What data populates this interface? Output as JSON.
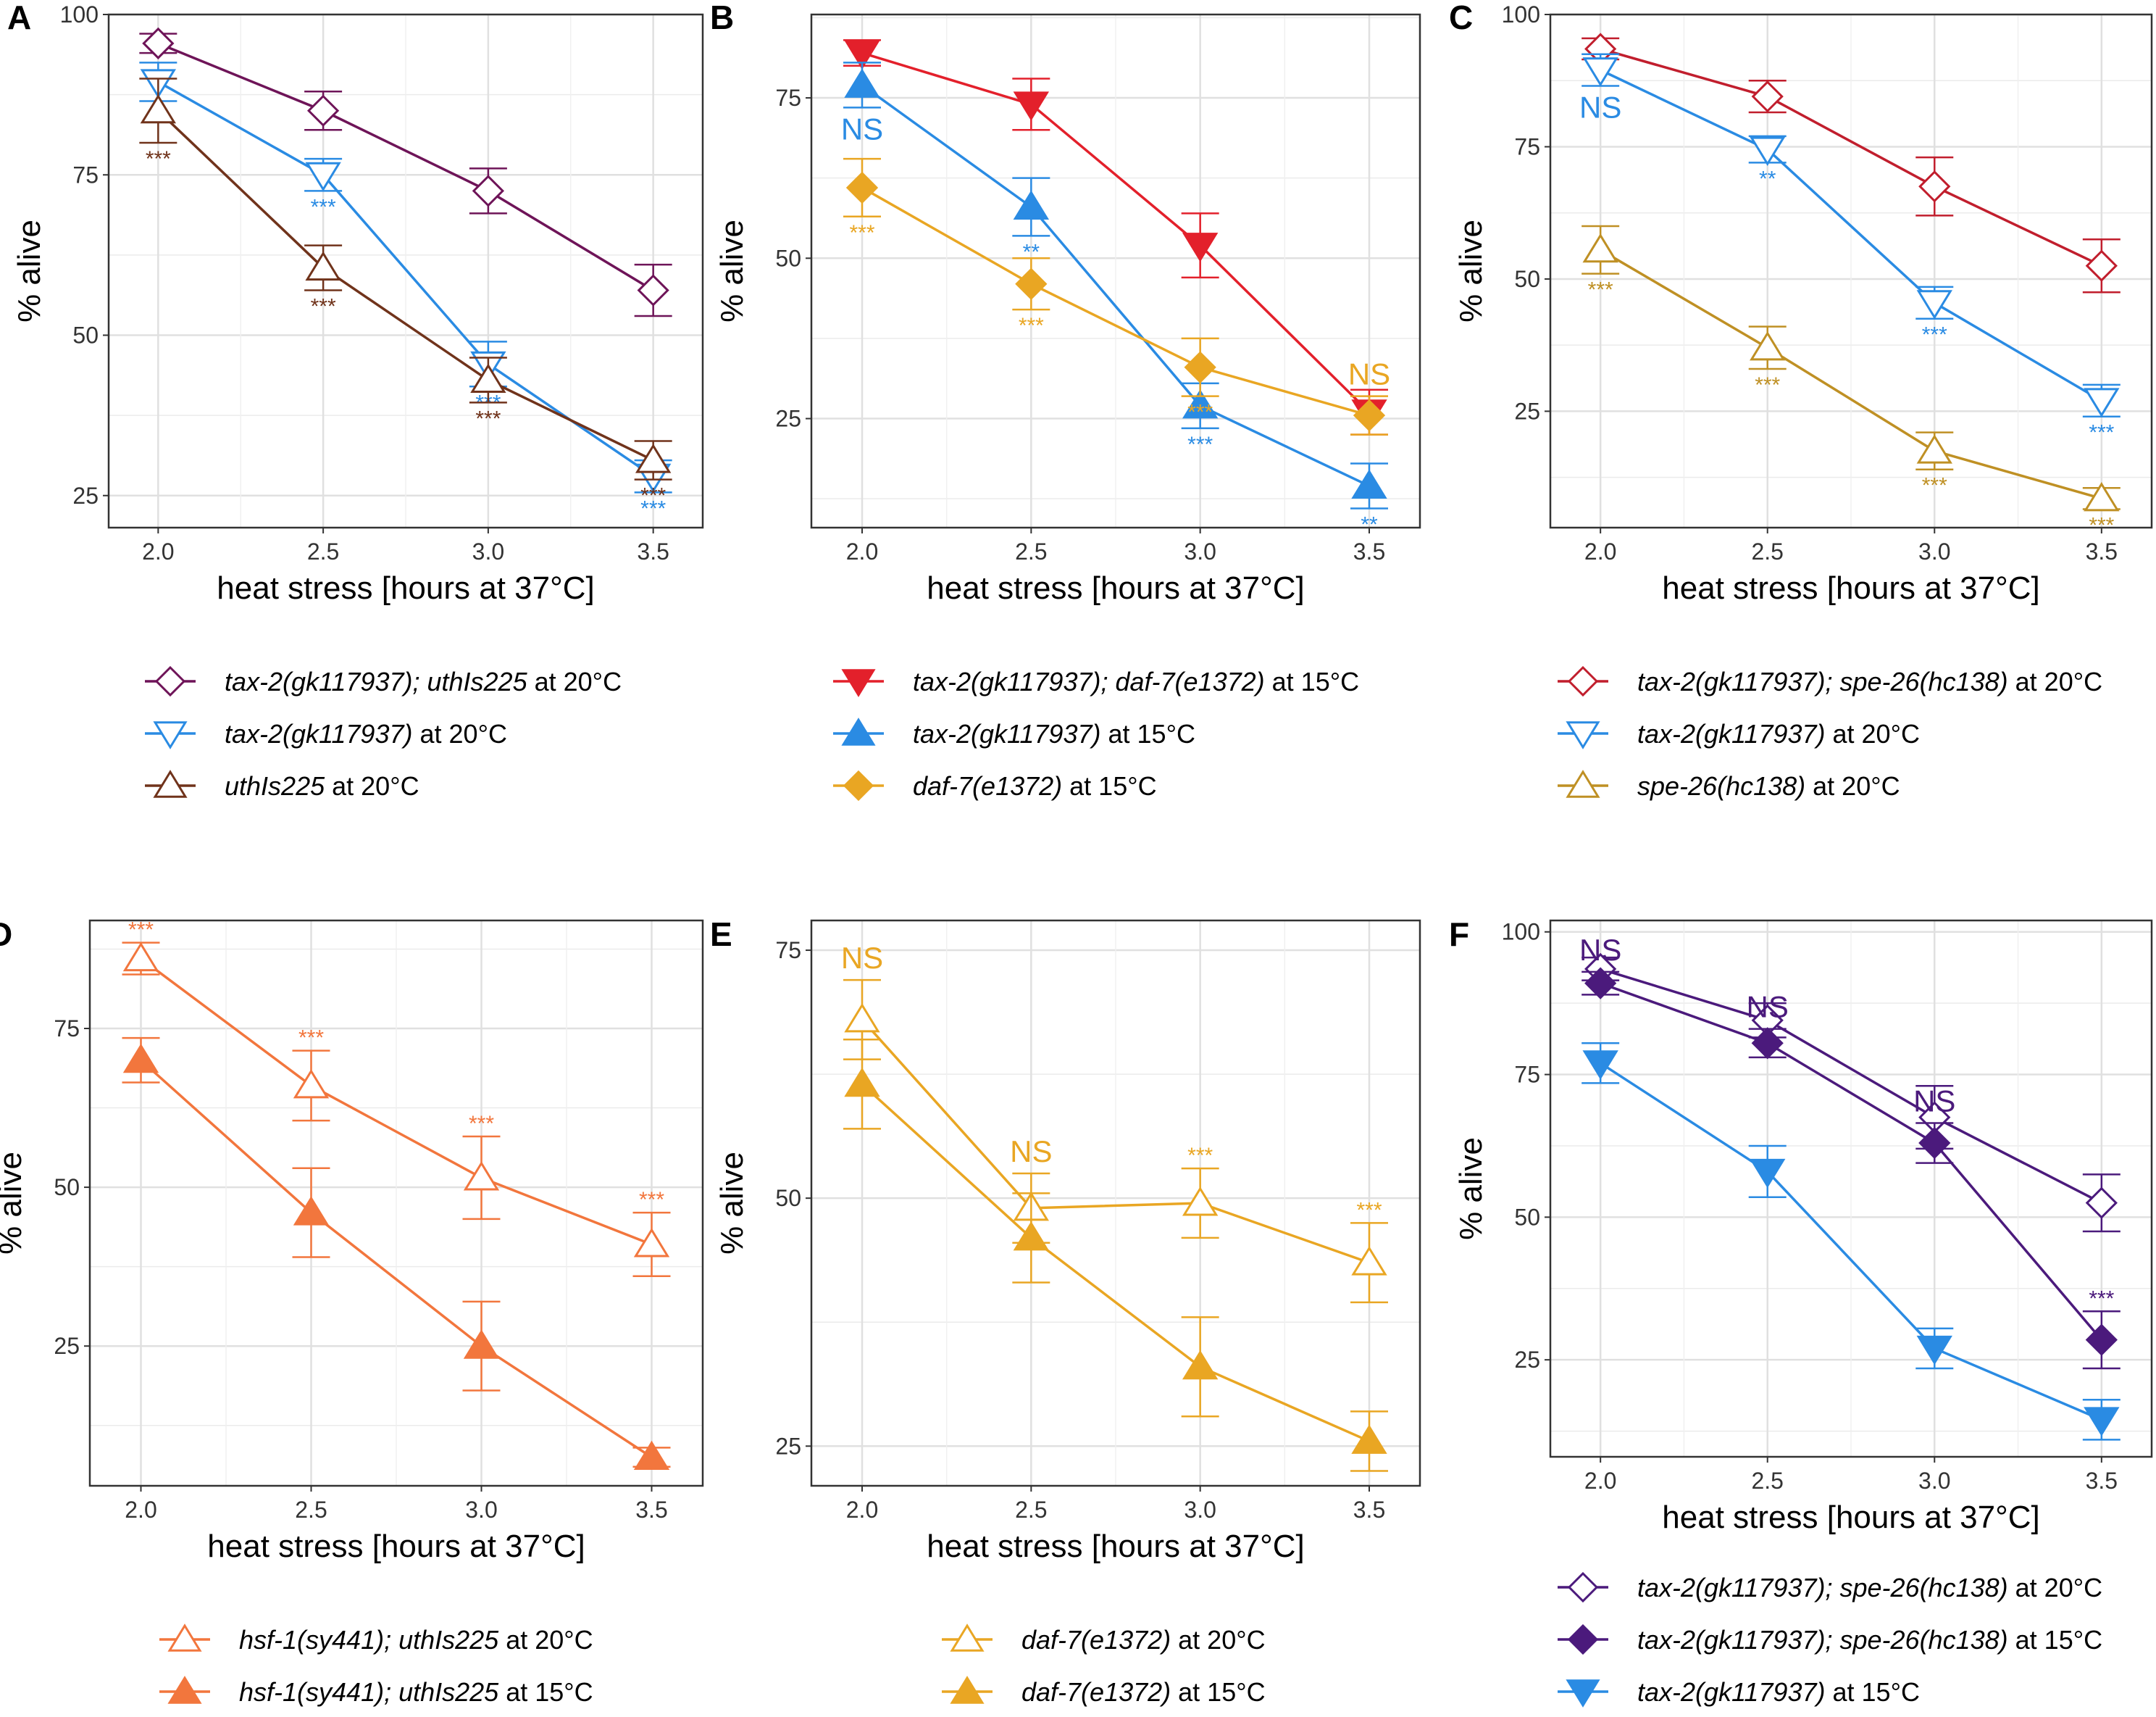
{
  "chart_data": [
    {
      "panel": "A",
      "type": "line",
      "xlabel": "heat stress [hours at 37°C]",
      "ylabel": "% alive",
      "x": [
        2.0,
        2.5,
        3.0,
        3.5
      ],
      "x_ticks": [
        "2.0",
        "2.5",
        "3.0",
        "3.5"
      ],
      "ylim": [
        20,
        100
      ],
      "y_ticks": [
        25,
        50,
        75,
        100
      ],
      "series": [
        {
          "name_italic": "tax-2(gk117937); uthIs225",
          "name_suffix": " at 20°C",
          "color": "#6e1458",
          "marker": "diamond",
          "filled": false,
          "values": [
            95.5,
            85,
            72.5,
            57
          ],
          "errors": [
            1.5,
            3,
            3.5,
            4
          ],
          "signif": [
            "",
            "",
            "",
            ""
          ]
        },
        {
          "name_italic": "tax-2(gk117937)",
          "name_suffix": " at 20°C",
          "color": "#2a8be3",
          "marker": "triangle-down",
          "filled": false,
          "values": [
            89.5,
            75,
            45.5,
            28
          ],
          "errors": [
            3,
            2.5,
            3.5,
            2.5
          ],
          "signif": [
            "**",
            "***",
            "***",
            "***"
          ]
        },
        {
          "name_italic": "uthIs225",
          "name_suffix": " at 20°C",
          "color": "#70331b",
          "marker": "triangle-up",
          "filled": false,
          "values": [
            85,
            60.5,
            43,
            30.5
          ],
          "errors": [
            5,
            3.5,
            3.5,
            3
          ],
          "signif": [
            "***",
            "***",
            "***",
            "***"
          ]
        }
      ]
    },
    {
      "panel": "B",
      "type": "line",
      "xlabel": "heat stress [hours at 37°C]",
      "ylabel": "% alive",
      "x": [
        2.0,
        2.5,
        3.0,
        3.5
      ],
      "x_ticks": [
        "2.0",
        "2.5",
        "3.0",
        "3.5"
      ],
      "ylim": [
        8,
        88
      ],
      "y_ticks": [
        25,
        50,
        75
      ],
      "series": [
        {
          "name_italic": "tax-2(gk117937); daf-7(e1372)",
          "name_suffix": " at 15°C",
          "color": "#e3202b",
          "marker": "triangle-down",
          "filled": true,
          "values": [
            82,
            74,
            52,
            26
          ],
          "errors": [
            2,
            4,
            5,
            3.5
          ],
          "signif": [
            "",
            "",
            "",
            ""
          ]
        },
        {
          "name_italic": "tax-2(gk117937)",
          "name_suffix": " at 15°C",
          "color": "#2a8be3",
          "marker": "triangle-up",
          "filled": true,
          "values": [
            77,
            58,
            27,
            14.5
          ],
          "errors": [
            3.5,
            4.5,
            3.5,
            3.5
          ],
          "signif": [
            "NS",
            "**",
            "***",
            "**"
          ]
        },
        {
          "name_italic": "daf-7(e1372)",
          "name_suffix": " at 15°C",
          "color": "#e9a623",
          "marker": "diamond",
          "filled": true,
          "values": [
            61,
            46,
            33,
            25.5
          ],
          "errors": [
            4.5,
            4,
            4.5,
            3
          ],
          "signif": [
            "***",
            "***",
            "***",
            "NS"
          ]
        }
      ]
    },
    {
      "panel": "C",
      "type": "line",
      "xlabel": "heat stress [hours at 37°C]",
      "ylabel": "% alive",
      "x": [
        2.0,
        2.5,
        3.0,
        3.5
      ],
      "x_ticks": [
        "2.0",
        "2.5",
        "3.0",
        "3.5"
      ],
      "ylim": [
        3,
        100
      ],
      "y_ticks": [
        25,
        50,
        75,
        100
      ],
      "series": [
        {
          "name_italic": "tax-2(gk117937); spe-26(hc138)",
          "name_suffix": " at 20°C",
          "color": "#c11e2d",
          "marker": "diamond",
          "filled": false,
          "values": [
            93.5,
            84.5,
            67.5,
            52.5
          ],
          "errors": [
            2,
            3,
            5.5,
            5
          ],
          "signif": [
            "",
            "",
            "",
            ""
          ]
        },
        {
          "name_italic": "tax-2(gk117937)",
          "name_suffix": " at 20°C",
          "color": "#2a8be3",
          "marker": "triangle-down",
          "filled": false,
          "values": [
            89.5,
            74.5,
            45.5,
            27
          ],
          "errors": [
            3,
            2.5,
            3,
            3
          ],
          "signif": [
            "NS",
            "**",
            "***",
            "***"
          ]
        },
        {
          "name_italic": "spe-26(hc138)",
          "name_suffix": " at 20°C",
          "color": "#bf9024",
          "marker": "triangle-up",
          "filled": false,
          "values": [
            55.5,
            37,
            17.5,
            8.5
          ],
          "errors": [
            4.5,
            4,
            3.5,
            2
          ],
          "signif": [
            "***",
            "***",
            "***",
            "***"
          ]
        }
      ]
    },
    {
      "panel": "D",
      "type": "line",
      "xlabel": "heat stress [hours at 37°C]",
      "ylabel": "% alive",
      "x": [
        2.0,
        2.5,
        3.0,
        3.5
      ],
      "x_ticks": [
        "2.0",
        "2.5",
        "3.0",
        "3.5"
      ],
      "ylim": [
        3,
        92
      ],
      "y_ticks": [
        25,
        50,
        75
      ],
      "series": [
        {
          "name_italic": "hsf-1(sy441); uthIs225",
          "name_suffix": " at 20°C",
          "color": "#f2763d",
          "marker": "triangle-up",
          "filled": false,
          "values": [
            86,
            66,
            51.5,
            41
          ],
          "errors": [
            2.5,
            5.5,
            6.5,
            5
          ],
          "signif": [
            "***",
            "***",
            "***",
            "***"
          ]
        },
        {
          "name_italic": "hsf-1(sy441); uthIs225",
          "name_suffix": " at 15°C",
          "color": "#f2763d",
          "marker": "triangle-up",
          "filled": true,
          "values": [
            70,
            46,
            25,
            7.5
          ],
          "errors": [
            3.5,
            7,
            7,
            1.5
          ],
          "signif": [
            "",
            "",
            "",
            ""
          ]
        }
      ]
    },
    {
      "panel": "E",
      "type": "line",
      "xlabel": "heat stress [hours at 37°C]",
      "ylabel": "% alive",
      "x": [
        2.0,
        2.5,
        3.0,
        3.5
      ],
      "x_ticks": [
        "2.0",
        "2.5",
        "3.0",
        "3.5"
      ],
      "ylim": [
        21,
        78
      ],
      "y_ticks": [
        25,
        50,
        75
      ],
      "series": [
        {
          "name_italic": "daf-7(e1372)",
          "name_suffix": " at 20°C",
          "color": "#e9a623",
          "marker": "triangle-up",
          "filled": false,
          "values": [
            68,
            49,
            49.5,
            43.5
          ],
          "errors": [
            4,
            3.5,
            3.5,
            4
          ],
          "signif": [
            "NS",
            "NS",
            "***",
            "***"
          ]
        },
        {
          "name_italic": "daf-7(e1372)",
          "name_suffix": " at 15°C",
          "color": "#e9a623",
          "marker": "triangle-up",
          "filled": true,
          "values": [
            61.5,
            46,
            33,
            25.5
          ],
          "errors": [
            4.5,
            4.5,
            5,
            3
          ],
          "signif": [
            "",
            "",
            "",
            ""
          ]
        }
      ]
    },
    {
      "panel": "F",
      "type": "line",
      "xlabel": "heat stress [hours at 37°C]",
      "ylabel": "% alive",
      "x": [
        2.0,
        2.5,
        3.0,
        3.5
      ],
      "x_ticks": [
        "2.0",
        "2.5",
        "3.0",
        "3.5"
      ],
      "ylim": [
        8,
        102
      ],
      "y_ticks": [
        25,
        50,
        75,
        100
      ],
      "series": [
        {
          "name_italic": "tax-2(gk117937); spe-26(hc138)",
          "name_suffix": " at 20°C",
          "color": "#4b1a7c",
          "marker": "diamond",
          "filled": false,
          "values": [
            93.5,
            84.5,
            67.5,
            52.5
          ],
          "errors": [
            2,
            3,
            5.5,
            5
          ],
          "signif": [
            "",
            "",
            "",
            ""
          ]
        },
        {
          "name_italic": "tax-2(gk117937); spe-26(hc138)",
          "name_suffix": " at 15°C",
          "color": "#4b1a7c",
          "marker": "diamond",
          "filled": true,
          "values": [
            91,
            80.5,
            63,
            28.5
          ],
          "errors": [
            2,
            2.5,
            3.5,
            5
          ],
          "signif": [
            "NS",
            "NS",
            "NS",
            "***"
          ]
        },
        {
          "name_italic": "tax-2(gk117937)",
          "name_suffix": " at 15°C",
          "color": "#2a8be3",
          "marker": "triangle-down",
          "filled": true,
          "values": [
            77,
            58,
            27,
            14.5
          ],
          "errors": [
            3.5,
            4.5,
            3.5,
            3.5
          ],
          "signif": [
            "",
            "",
            "",
            ""
          ]
        }
      ]
    }
  ]
}
